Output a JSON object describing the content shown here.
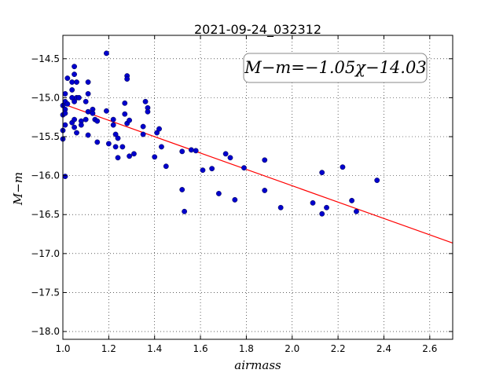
{
  "chart_data": {
    "type": "scatter",
    "title": "2021-09-24_032312",
    "xlabel": "airmass",
    "ylabel": "M−m",
    "xlim": [
      1.0,
      2.7
    ],
    "ylim": [
      -18.1,
      -14.2
    ],
    "xticks": [
      1.0,
      1.2,
      1.4,
      1.6,
      1.8,
      2.0,
      2.2,
      2.4,
      2.6
    ],
    "yticks": [
      -14.5,
      -15.0,
      -15.5,
      -16.0,
      -16.5,
      -17.0,
      -17.5,
      -18.0
    ],
    "grid": true,
    "annotation": "M−m=−1.05χ−14.03",
    "point_color": "#0000cc",
    "fit_color": "#ff0000",
    "fit": {
      "slope": -1.05,
      "intercept": -14.03
    },
    "series": [
      {
        "points": [
          [
            1.0,
            -15.1
          ],
          [
            1.0,
            -15.22
          ],
          [
            1.0,
            -15.42
          ],
          [
            1.0,
            -15.53
          ],
          [
            1.01,
            -14.95
          ],
          [
            1.01,
            -15.05
          ],
          [
            1.01,
            -15.15
          ],
          [
            1.01,
            -15.2
          ],
          [
            1.01,
            -15.35
          ],
          [
            1.01,
            -16.01
          ],
          [
            1.02,
            -14.75
          ],
          [
            1.02,
            -15.08
          ],
          [
            1.04,
            -14.8
          ],
          [
            1.04,
            -14.9
          ],
          [
            1.04,
            -15.0
          ],
          [
            1.04,
            -15.32
          ],
          [
            1.05,
            -14.6
          ],
          [
            1.05,
            -14.7
          ],
          [
            1.05,
            -15.05
          ],
          [
            1.05,
            -15.28
          ],
          [
            1.05,
            -15.38
          ],
          [
            1.06,
            -14.8
          ],
          [
            1.06,
            -15.0
          ],
          [
            1.06,
            -15.45
          ],
          [
            1.07,
            -15.0
          ],
          [
            1.08,
            -15.3
          ],
          [
            1.08,
            -15.35
          ],
          [
            1.1,
            -15.05
          ],
          [
            1.1,
            -15.28
          ],
          [
            1.11,
            -15.18
          ],
          [
            1.11,
            -15.48
          ],
          [
            1.11,
            -14.8
          ],
          [
            1.11,
            -14.95
          ],
          [
            1.13,
            -15.15
          ],
          [
            1.13,
            -15.2
          ],
          [
            1.14,
            -15.28
          ],
          [
            1.15,
            -15.3
          ],
          [
            1.15,
            -15.57
          ],
          [
            1.19,
            -15.17
          ],
          [
            1.19,
            -14.43
          ],
          [
            1.2,
            -15.59
          ],
          [
            1.22,
            -15.28
          ],
          [
            1.22,
            -15.35
          ],
          [
            1.23,
            -15.47
          ],
          [
            1.23,
            -15.63
          ],
          [
            1.24,
            -15.52
          ],
          [
            1.24,
            -15.77
          ],
          [
            1.26,
            -15.63
          ],
          [
            1.27,
            -15.21
          ],
          [
            1.27,
            -15.07
          ],
          [
            1.28,
            -15.33
          ],
          [
            1.28,
            -14.72
          ],
          [
            1.28,
            -14.76
          ],
          [
            1.29,
            -15.29
          ],
          [
            1.29,
            -15.75
          ],
          [
            1.31,
            -15.72
          ],
          [
            1.35,
            -15.37
          ],
          [
            1.35,
            -15.47
          ],
          [
            1.36,
            -15.05
          ],
          [
            1.37,
            -15.13
          ],
          [
            1.37,
            -15.18
          ],
          [
            1.4,
            -15.76
          ],
          [
            1.41,
            -15.45
          ],
          [
            1.42,
            -15.4
          ],
          [
            1.43,
            -15.63
          ],
          [
            1.45,
            -15.88
          ],
          [
            1.52,
            -15.69
          ],
          [
            1.52,
            -16.18
          ],
          [
            1.53,
            -16.46
          ],
          [
            1.56,
            -15.67
          ],
          [
            1.58,
            -15.68
          ],
          [
            1.61,
            -15.93
          ],
          [
            1.65,
            -15.91
          ],
          [
            1.68,
            -16.23
          ],
          [
            1.71,
            -15.72
          ],
          [
            1.73,
            -15.77
          ],
          [
            1.75,
            -16.31
          ],
          [
            1.79,
            -15.9
          ],
          [
            1.88,
            -15.8
          ],
          [
            1.88,
            -16.19
          ],
          [
            1.95,
            -16.41
          ],
          [
            2.09,
            -16.35
          ],
          [
            2.13,
            -15.96
          ],
          [
            2.13,
            -16.49
          ],
          [
            2.15,
            -16.41
          ],
          [
            2.22,
            -15.89
          ],
          [
            2.26,
            -16.32
          ],
          [
            2.28,
            -16.46
          ],
          [
            2.37,
            -16.06
          ]
        ]
      }
    ]
  }
}
